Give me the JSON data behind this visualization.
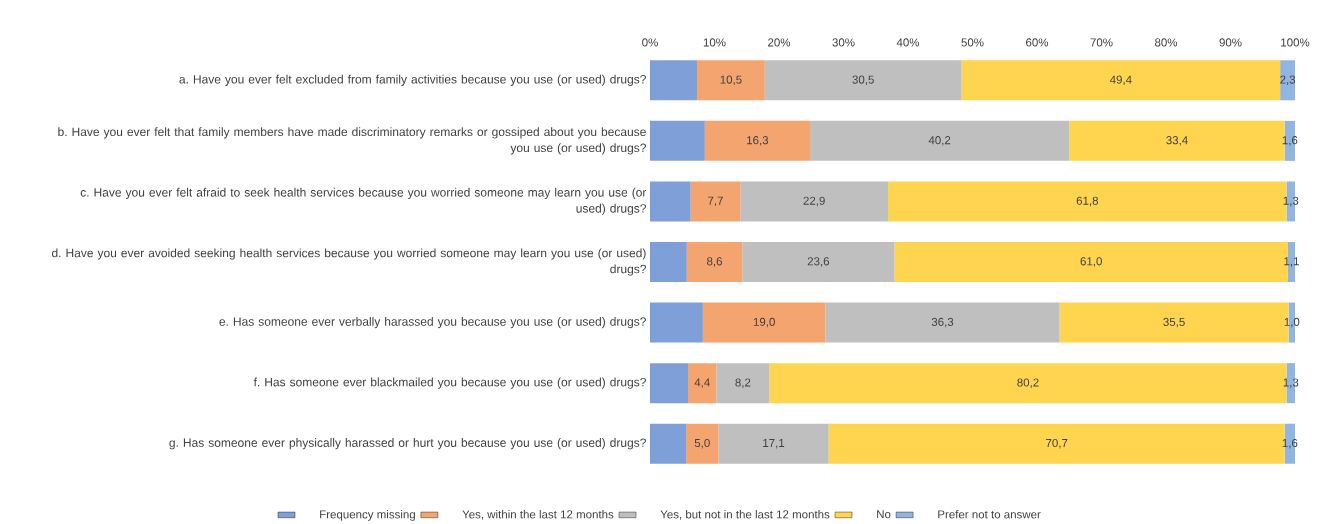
{
  "chart_data": {
    "type": "bar",
    "orientation": "horizontal",
    "stacked": true,
    "categories": [
      "a. Have you ever felt excluded from family activities because you use (or used) drugs?",
      "b. Have you ever felt that family members have made discriminatory remarks or gossiped about you because you use (or used) drugs?",
      "c. Have you ever felt afraid to seek health services because you worried someone may learn you use (or used) drugs?",
      "d. Have you ever avoided seeking health services because you worried someone may learn you use (or used) drugs?",
      "e. Has someone ever verbally harassed you because you use (or used) drugs?",
      "f. Has someone ever blackmailed you because you use (or used) drugs?",
      "g. Has someone ever physically harassed or hurt you because you use (or used) drugs?"
    ],
    "series": [
      {
        "name": "Frequency missing",
        "color": "#7f9fd8",
        "values": [
          7.3,
          8.5,
          6.3,
          5.7,
          8.2,
          5.9,
          5.6
        ]
      },
      {
        "name": "Yes, within the last 12 months",
        "color": "#f4a46e",
        "values": [
          10.5,
          16.3,
          7.7,
          8.6,
          19.0,
          4.4,
          5.0
        ],
        "value_labels": [
          "10,5",
          "16,3",
          "7,7",
          "8,6",
          "19,0",
          "4,4",
          "5,0"
        ]
      },
      {
        "name": "Yes, but not in the last 12 months",
        "color": "#bfbfbf",
        "values": [
          30.5,
          40.2,
          22.9,
          23.6,
          36.3,
          8.2,
          17.1
        ],
        "value_labels": [
          "30,5",
          "40,2",
          "22,9",
          "23,6",
          "36,3",
          "8,2",
          "17,1"
        ]
      },
      {
        "name": "No",
        "color": "#ffd44f",
        "values": [
          49.4,
          33.4,
          61.8,
          61.0,
          35.5,
          80.2,
          70.7
        ],
        "value_labels": [
          "49,4",
          "33,4",
          "61,8",
          "61,0",
          "35,5",
          "80,2",
          "70,7"
        ]
      },
      {
        "name": "Prefer not to answer",
        "color": "#8fb5e0",
        "values": [
          2.3,
          1.6,
          1.3,
          1.1,
          1.0,
          1.3,
          1.6
        ],
        "value_labels": [
          "2,3",
          "1,6",
          "1,3",
          "1,1",
          "1,0",
          "1,3",
          "1,6"
        ]
      }
    ],
    "xlim": [
      0,
      100
    ],
    "xticks": [
      {
        "value": 0,
        "label": "0%"
      },
      {
        "value": 10,
        "label": "10%"
      },
      {
        "value": 20,
        "label": "20%"
      },
      {
        "value": 30,
        "label": "30%"
      },
      {
        "value": 40,
        "label": "40%"
      },
      {
        "value": 50,
        "label": "50%"
      },
      {
        "value": 60,
        "label": "60%"
      },
      {
        "value": 70,
        "label": "70%"
      },
      {
        "value": 80,
        "label": "80%"
      },
      {
        "value": 90,
        "label": "90%"
      },
      {
        "value": 100,
        "label": "100%"
      }
    ],
    "legend": "bottom"
  }
}
